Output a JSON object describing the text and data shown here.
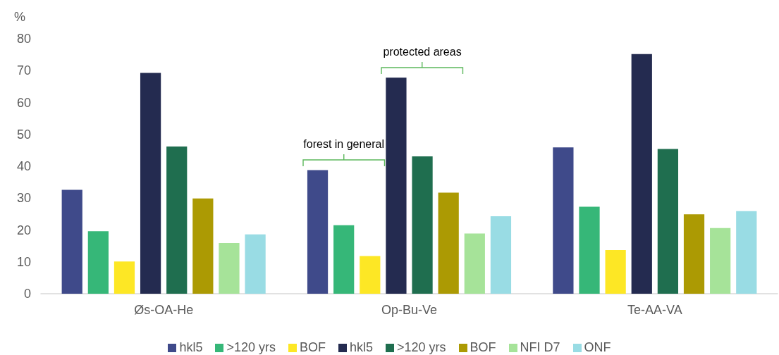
{
  "chart_data": {
    "type": "bar",
    "ylabel": "%",
    "categories": [
      "Øs-OA-He",
      "Op-Bu-Ve",
      "Te-AA-VA"
    ],
    "series": [
      {
        "name": "hkl5",
        "color": "#3f4a8a",
        "values": [
          32.6,
          38.8,
          45.9
        ]
      },
      {
        "name": ">120 yrs",
        "color": "#36b778",
        "values": [
          19.6,
          21.5,
          27.3
        ]
      },
      {
        "name": "BOF",
        "color": "#fde725",
        "values": [
          10.1,
          11.8,
          13.7
        ]
      },
      {
        "name": "hkl5",
        "color": "#242b50",
        "values": [
          69.3,
          67.8,
          75.2
        ]
      },
      {
        "name": ">120 yrs",
        "color": "#1f6e4f",
        "values": [
          46.2,
          43.1,
          45.4
        ]
      },
      {
        "name": "BOF",
        "color": "#ac9a03",
        "values": [
          29.9,
          31.7,
          24.9
        ]
      },
      {
        "name": "NFI D7",
        "color": "#a6e399",
        "values": [
          15.9,
          18.9,
          20.6
        ]
      },
      {
        "name": "ONF",
        "color": "#99dce4",
        "values": [
          18.6,
          24.3,
          25.9
        ]
      }
    ],
    "ylim": [
      0,
      80
    ],
    "yticks": [
      0,
      10,
      20,
      30,
      40,
      50,
      60,
      70,
      80
    ],
    "grid": false,
    "legend": "bottom",
    "annotations": [
      "forest in general",
      "protected areas"
    ]
  }
}
